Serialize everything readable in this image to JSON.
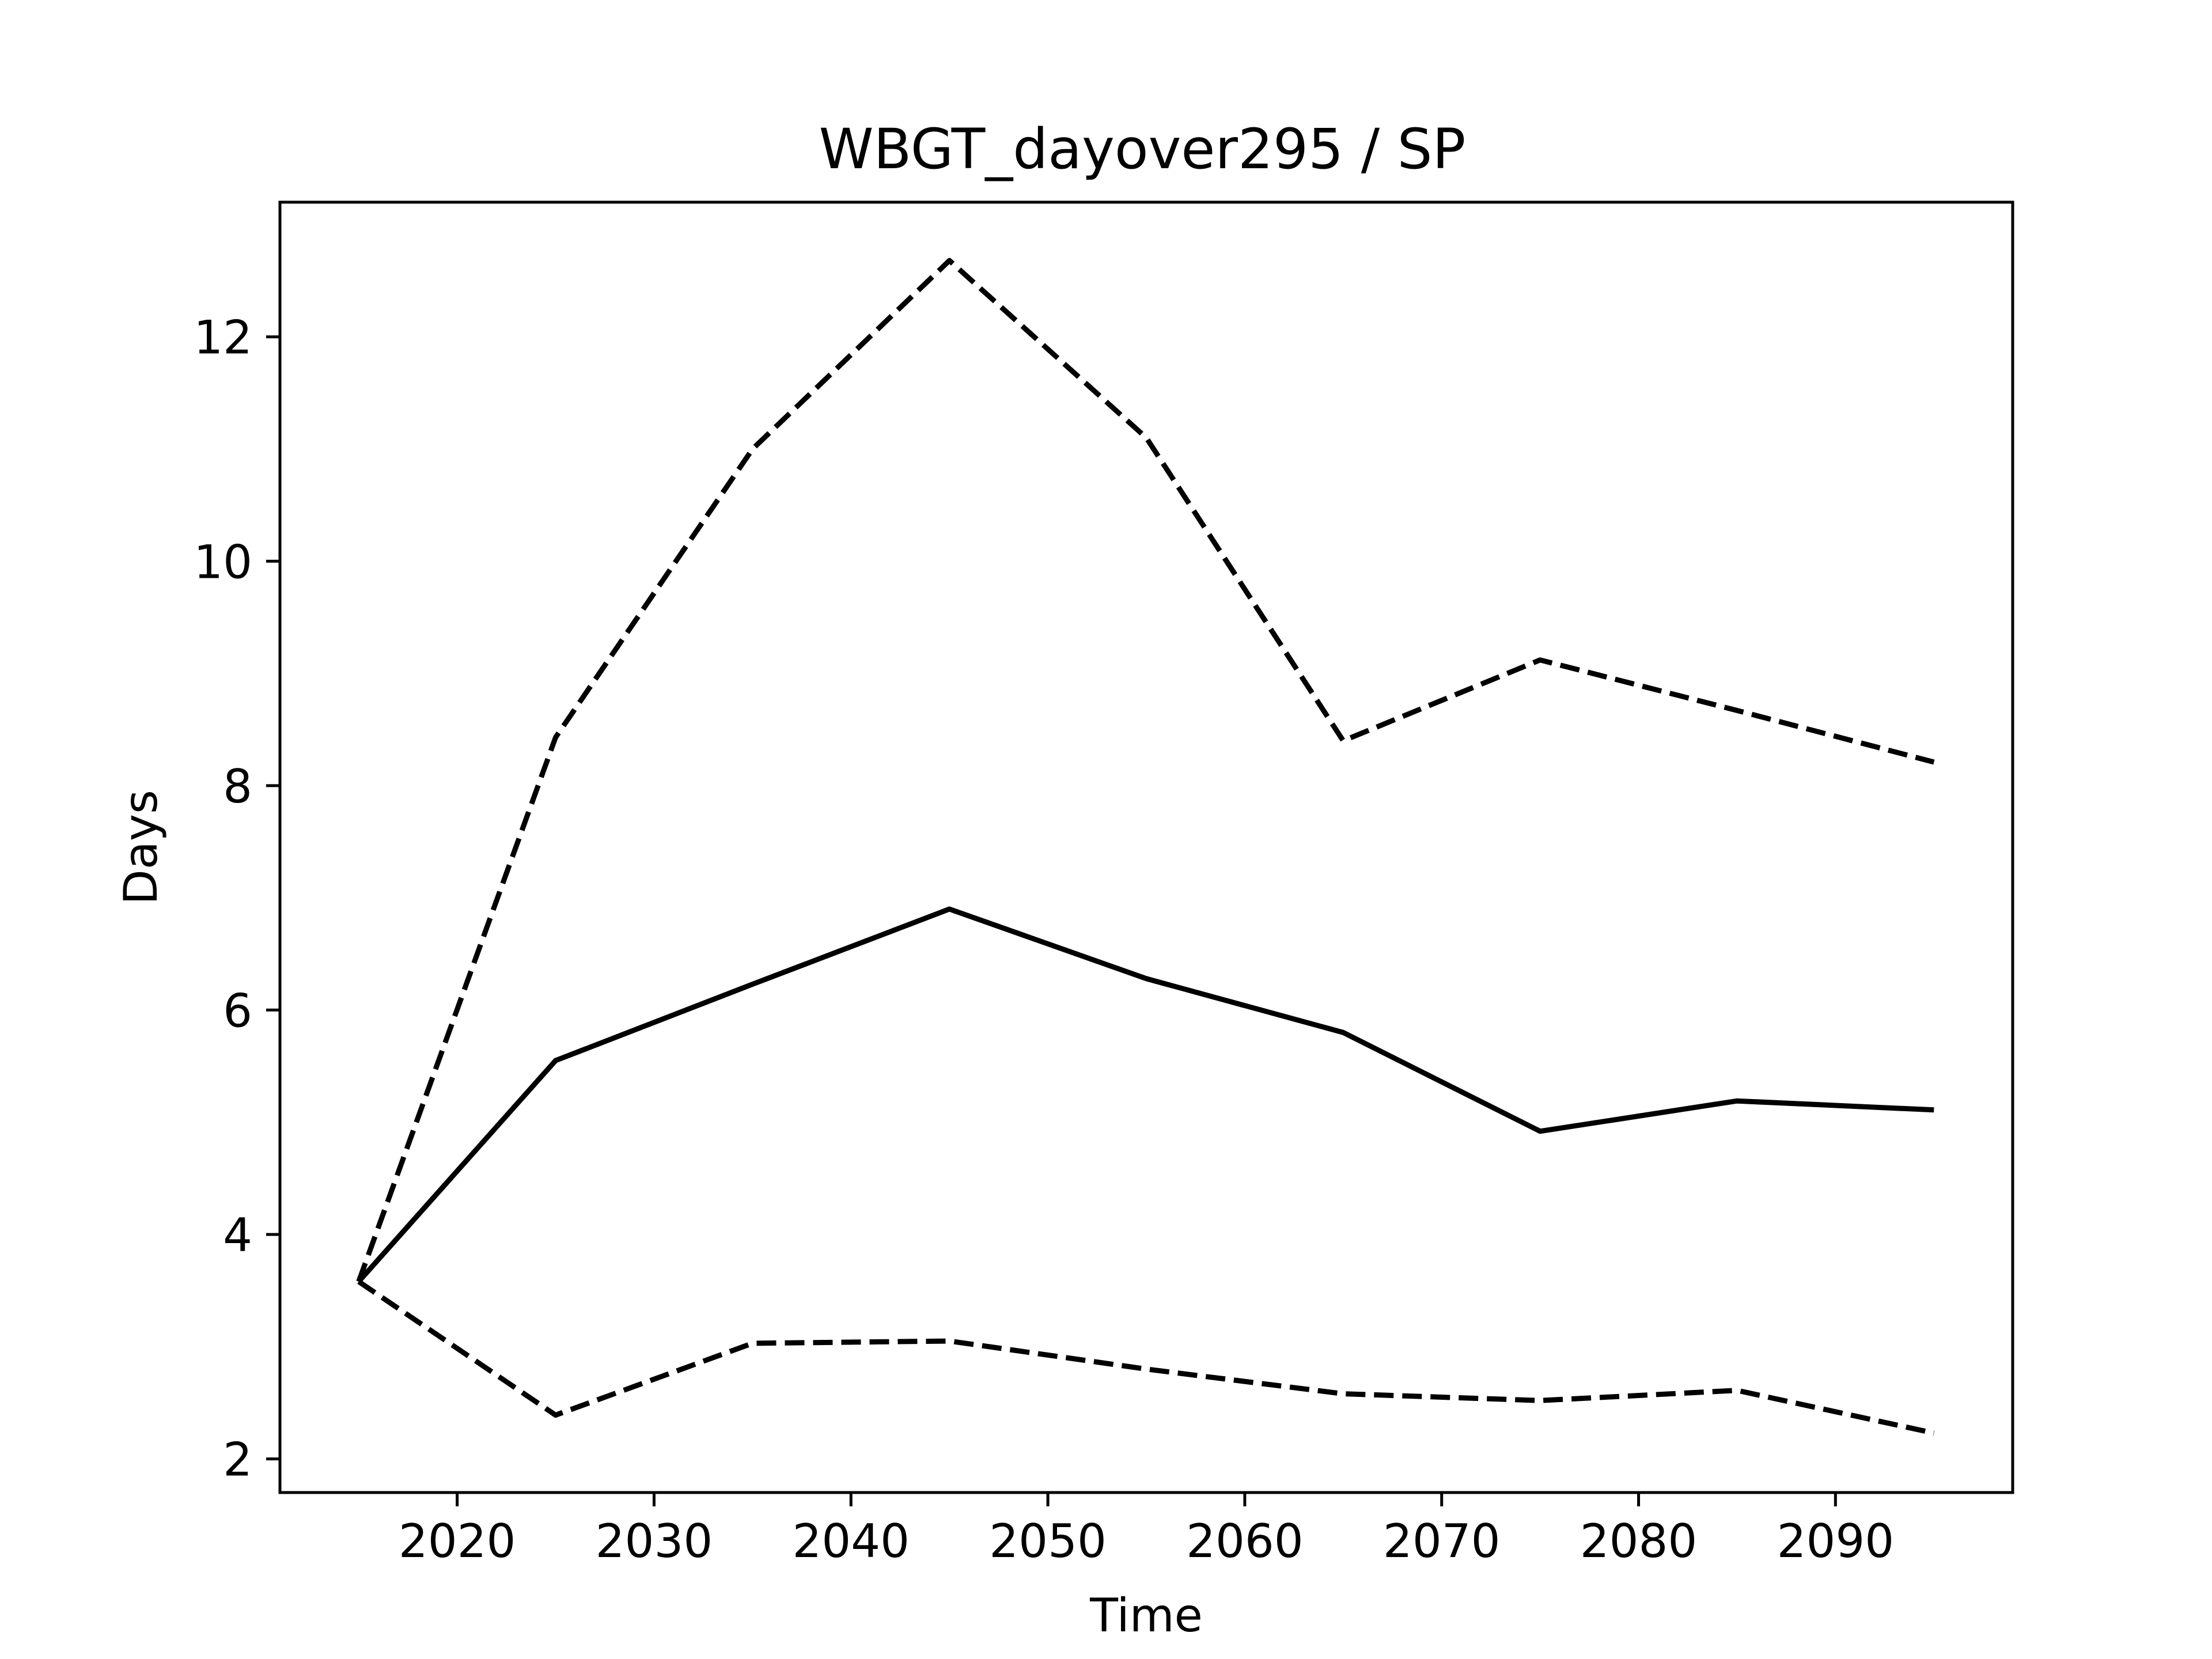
{
  "chart_data": {
    "type": "line",
    "title": "WBGT_dayover295 / SP",
    "xlabel": "Time",
    "ylabel": "Days",
    "xlim": [
      2011,
      2099
    ],
    "ylim": [
      1.7,
      13.2
    ],
    "xticks": [
      2020,
      2030,
      2040,
      2050,
      2060,
      2070,
      2080,
      2090
    ],
    "yticks": [
      2,
      4,
      6,
      8,
      10,
      12
    ],
    "grid": false,
    "legend": "none",
    "x": [
      2015,
      2025,
      2035,
      2045,
      2055,
      2065,
      2075,
      2085,
      2095
    ],
    "series": [
      {
        "style": "solid",
        "color": "#000000",
        "values": [
          3.58,
          5.55,
          6.23,
          6.9,
          6.28,
          5.8,
          4.92,
          5.19,
          5.11
        ]
      },
      {
        "style": "dashed",
        "color": "#000000",
        "values": [
          3.58,
          8.43,
          11.0,
          12.68,
          11.1,
          8.4,
          9.12,
          8.67,
          8.21
        ]
      },
      {
        "style": "dashed",
        "color": "#000000",
        "values": [
          3.58,
          2.39,
          3.03,
          3.05,
          2.8,
          2.58,
          2.52,
          2.61,
          2.23
        ]
      }
    ]
  }
}
